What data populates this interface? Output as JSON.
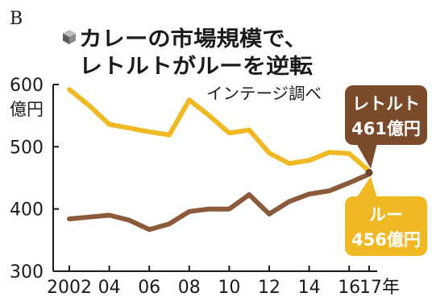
{
  "panel_letter": "B",
  "chart_data": {
    "type": "line",
    "title_lines": [
      "カレーの市場規模で、",
      "レトルトがルーを逆転"
    ],
    "source_note": "インテージ調べ",
    "y_unit": "億円",
    "ylim": [
      300,
      600
    ],
    "y_ticks": [
      300,
      400,
      500,
      600
    ],
    "x": [
      2002,
      2003,
      2004,
      2005,
      2006,
      2007,
      2008,
      2009,
      2010,
      2011,
      2012,
      2013,
      2014,
      2015,
      2016,
      2017
    ],
    "x_tick_labels": [
      "2002",
      "04",
      "06",
      "08",
      "10",
      "12",
      "14",
      "16",
      "17年"
    ],
    "x_tick_years": [
      2002,
      2004,
      2006,
      2008,
      2010,
      2012,
      2014,
      2016,
      2017
    ],
    "series": [
      {
        "name": "レトルト",
        "color": "#f0b823",
        "values": [
          592,
          566,
          536,
          530,
          524,
          519,
          575,
          550,
          522,
          527,
          490,
          473,
          478,
          491,
          489,
          461
        ],
        "callout_name": "レトルト",
        "callout_value": "461億円",
        "callout_color": "#7a4a2a"
      },
      {
        "name": "ルー",
        "color": "#8a5a3b",
        "values": [
          384,
          387,
          390,
          382,
          367,
          376,
          396,
          400,
          400,
          423,
          392,
          412,
          424,
          429,
          442,
          456
        ],
        "callout_name": "ルー",
        "callout_value": "456億円",
        "callout_color": "#f0b823"
      }
    ],
    "grid": false,
    "legend": "none"
  }
}
